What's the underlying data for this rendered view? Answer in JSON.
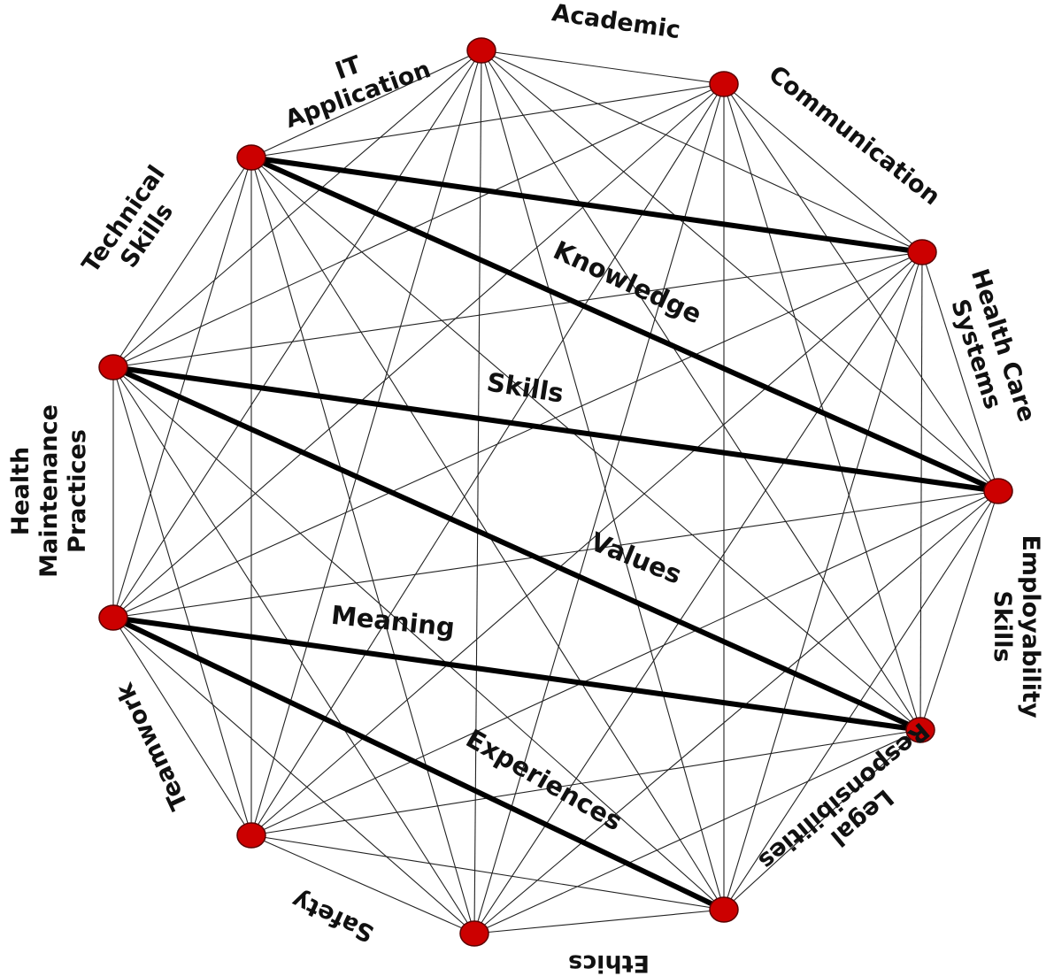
{
  "diagram": {
    "colors": {
      "node_fill": "#cc0000",
      "node_stroke": "#5a0000",
      "edge_thin": "#222222",
      "edge_thick": "#000000",
      "text": "#111111"
    },
    "nodes": [
      {
        "id": "academic",
        "label": [
          "Academic"
        ]
      },
      {
        "id": "communication",
        "label": [
          "Communication"
        ]
      },
      {
        "id": "health-care-systems",
        "label": [
          "Health Care",
          "Systems"
        ]
      },
      {
        "id": "employability-skills",
        "label": [
          "Employability",
          "Skills"
        ]
      },
      {
        "id": "legal-responsibilities",
        "label": [
          "Legal",
          "Responsibilities"
        ]
      },
      {
        "id": "ethics",
        "label": [
          "Ethics"
        ]
      },
      {
        "id": "safety",
        "label": [
          "Safety"
        ]
      },
      {
        "id": "teamwork",
        "label": [
          "Teamwork"
        ]
      },
      {
        "id": "health-maintenance-practices",
        "label": [
          "Health",
          "Maintenance",
          "Practices"
        ]
      },
      {
        "id": "technical-skills",
        "label": [
          "Technical",
          "Skills"
        ]
      },
      {
        "id": "it-application",
        "label": [
          "IT",
          "Application"
        ]
      }
    ],
    "thick_edges": [
      {
        "from": "it-application",
        "to": "health-care-systems"
      },
      {
        "from": "it-application",
        "to": "employability-skills",
        "label": "Knowledge"
      },
      {
        "from": "technical-skills",
        "to": "employability-skills",
        "label": "Skills"
      },
      {
        "from": "technical-skills",
        "to": "legal-responsibilities",
        "label": "Values"
      },
      {
        "from": "health-maintenance-practices",
        "to": "legal-responsibilities",
        "label": "Meaning"
      },
      {
        "from": "health-maintenance-practices",
        "to": "ethics",
        "label": "Experiences"
      }
    ]
  }
}
